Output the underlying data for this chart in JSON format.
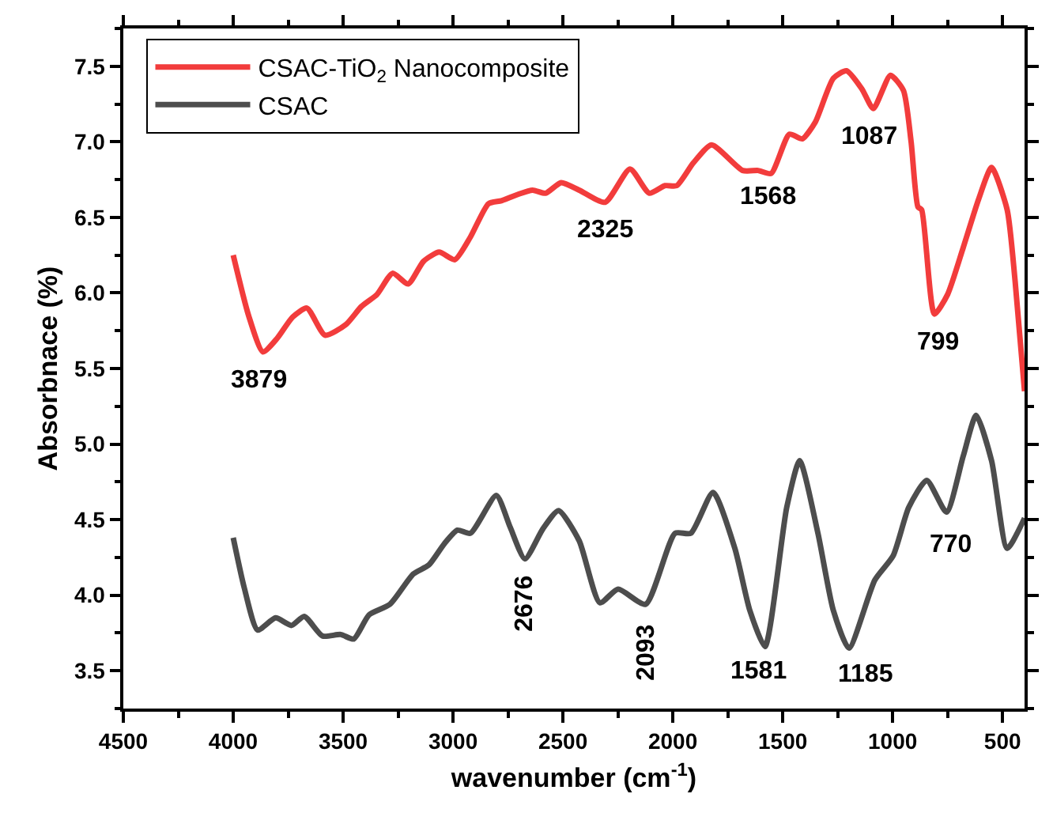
{
  "chart_data": {
    "type": "line",
    "xlabel": "wavenumber (cm$^{-1}$)",
    "ylabel": "Absorbnace (%)",
    "xlim": [
      4500,
      400
    ],
    "xticks": [
      4500,
      4000,
      3500,
      3000,
      2500,
      2000,
      1500,
      1000,
      500
    ],
    "ylim": [
      3.25,
      7.75
    ],
    "yticks": [
      3.5,
      {
        "value": 4,
        "label": "4.0"
      },
      4.5,
      {
        "value": 5,
        "label": "5.0"
      },
      5.5,
      {
        "value": 6,
        "label": "6.0"
      },
      6.5,
      {
        "value": 7,
        "label": "7.0"
      },
      7.5
    ],
    "legend": "top left",
    "marker": "none",
    "line_style": "solid",
    "series": [
      {
        "name": "CSAC-TiO$_{2}$ Nanocomposite",
        "color": "#f23c3c",
        "x": [
          4000,
          3930,
          3865,
          3800,
          3730,
          3665,
          3582,
          3488,
          3417,
          3346,
          3275,
          3204,
          3134,
          3063,
          2992,
          2921,
          2839,
          2780,
          2709,
          2638,
          2579,
          2508,
          2426,
          2308,
          2195,
          2107,
          2036,
          1982,
          1907,
          1824,
          1682,
          1612,
          1553,
          1470,
          1411,
          1352,
          1270,
          1210,
          1140,
          1088,
          1010,
          951,
          916,
          885,
          868,
          810,
          750,
          679,
          609,
          550,
          479,
          443,
          400
        ],
        "values": [
          6.25,
          5.85,
          5.61,
          5.7,
          5.84,
          5.9,
          5.72,
          5.79,
          5.91,
          5.99,
          6.13,
          6.06,
          6.21,
          6.27,
          6.22,
          6.37,
          6.59,
          6.61,
          6.65,
          6.68,
          6.66,
          6.73,
          6.68,
          6.6,
          6.82,
          6.66,
          6.71,
          6.71,
          6.86,
          6.98,
          6.81,
          6.81,
          6.79,
          7.05,
          7.02,
          7.13,
          7.42,
          7.47,
          7.35,
          7.22,
          7.44,
          7.34,
          7.0,
          6.57,
          6.55,
          5.86,
          5.99,
          6.3,
          6.62,
          6.83,
          6.55,
          6.08,
          5.35
        ]
      },
      {
        "name": "CSAC",
        "color": "#4d4d4d",
        "x": [
          4000,
          3950,
          3889,
          3807,
          3735,
          3677,
          3594,
          3511,
          3452,
          3382,
          3287,
          3181,
          3110,
          3040,
          2980,
          2921,
          2803,
          2740,
          2673,
          2591,
          2520,
          2426,
          2332,
          2249,
          2124,
          1990,
          1918,
          1817,
          1718,
          1650,
          1581,
          1482,
          1423,
          1340,
          1270,
          1199,
          1081,
          998,
          927,
          845,
          755,
          679,
          620,
          550,
          479,
          400
        ],
        "values": [
          4.38,
          4.05,
          3.77,
          3.85,
          3.8,
          3.86,
          3.73,
          3.74,
          3.71,
          3.87,
          3.94,
          4.14,
          4.2,
          4.34,
          4.43,
          4.41,
          4.66,
          4.45,
          4.24,
          4.44,
          4.56,
          4.36,
          3.95,
          4.04,
          3.94,
          4.41,
          4.41,
          4.68,
          4.31,
          3.9,
          3.66,
          4.58,
          4.89,
          4.41,
          3.9,
          3.65,
          4.1,
          4.26,
          4.58,
          4.76,
          4.55,
          4.92,
          5.19,
          4.89,
          4.31,
          4.51
        ]
      }
    ],
    "annotations": [
      {
        "text": "3879",
        "x": 3865,
        "y": 5.61
      },
      {
        "text": "2325",
        "x": 2308,
        "y": 6.6
      },
      {
        "text": "1568",
        "x": 1553,
        "y": 6.79
      },
      {
        "text": "1087",
        "x": 1088,
        "y": 7.22
      },
      {
        "text": "799",
        "x": 810,
        "y": 5.86
      },
      {
        "text": "2676",
        "x": 2673,
        "y": 4.24
      },
      {
        "text": "2093",
        "x": 2124,
        "y": 3.94
      },
      {
        "text": "1581",
        "x": 1581,
        "y": 3.66
      },
      {
        "text": "1185",
        "x": 1199,
        "y": 3.65
      },
      {
        "text": "770",
        "x": 755,
        "y": 4.55
      }
    ]
  }
}
